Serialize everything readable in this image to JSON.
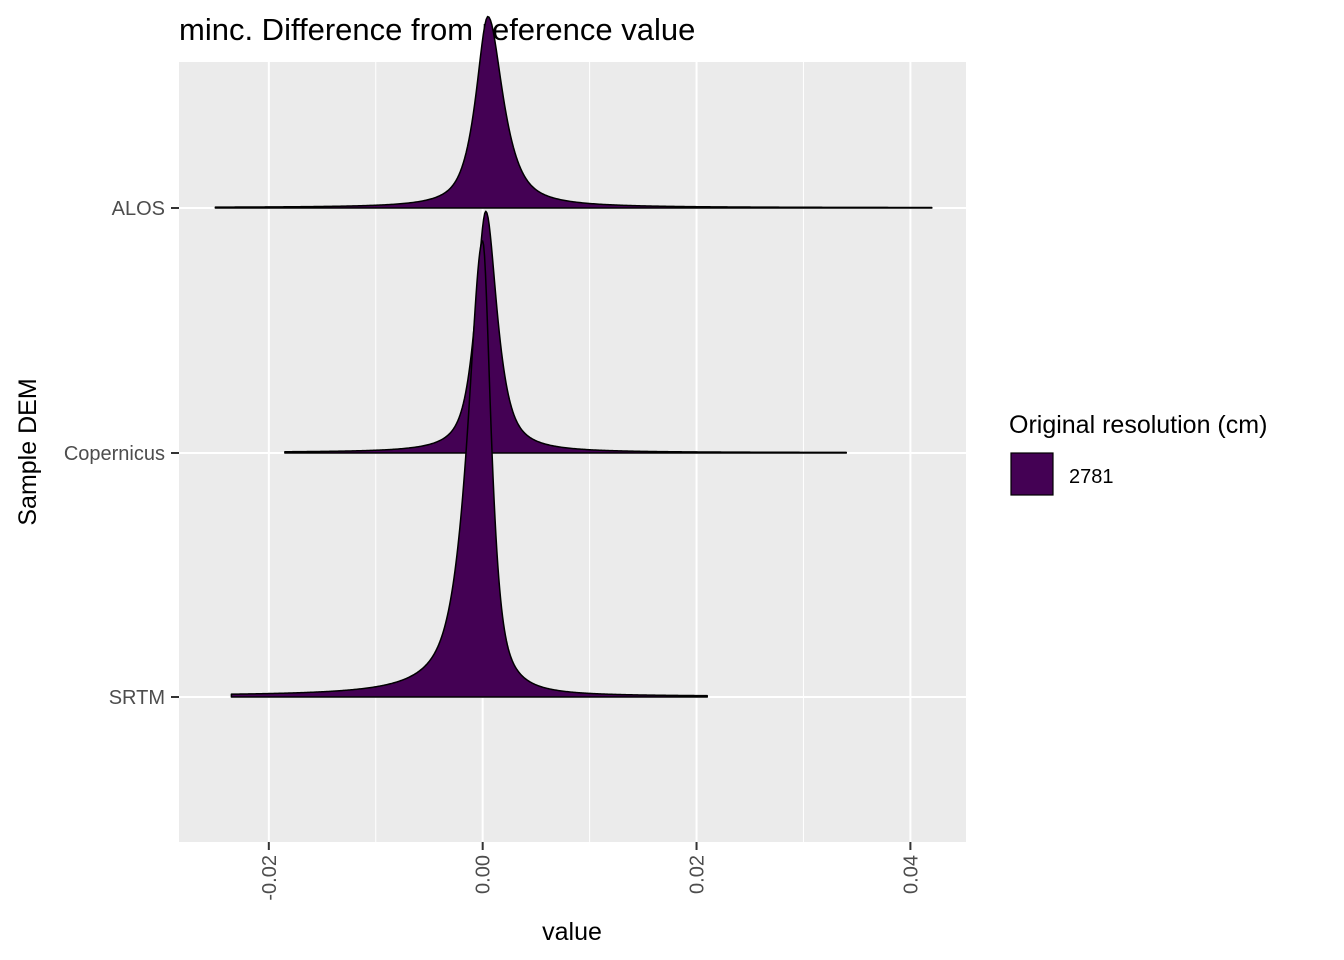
{
  "chart_data": {
    "type": "ridgeline",
    "title": "minc. Difference from reference value",
    "xlabel": "value",
    "ylabel": "Sample DEM",
    "xlim": [
      -0.0284,
      0.0452
    ],
    "x_ticks": [
      -0.02,
      0.0,
      0.02,
      0.04
    ],
    "x_tick_labels": [
      "-0.02",
      "0.00",
      "0.02",
      "0.04"
    ],
    "grid": true,
    "categories": [
      "ALOS",
      "Copernicus",
      "SRTM"
    ],
    "series": [
      {
        "category": "ALOS",
        "min": -0.025,
        "max": 0.042,
        "peak": 0.0005,
        "peak_height": 0.42,
        "sd_left": 0.0013,
        "sd_right": 0.0016
      },
      {
        "category": "Copernicus",
        "min": -0.0185,
        "max": 0.034,
        "peak": 0.0003,
        "peak_height": 0.53,
        "sd_left": 0.0011,
        "sd_right": 0.0012
      },
      {
        "category": "SRTM",
        "min": -0.0235,
        "max": 0.021,
        "peak": 0.0,
        "peak_height": 1.0,
        "sd_left": 0.0016,
        "sd_right": 0.0009
      }
    ],
    "fill_color": "#440154",
    "outline_color": "#000000",
    "legend": {
      "title": "Original resolution (cm)",
      "items": [
        {
          "label": "2781",
          "color": "#440154"
        }
      ],
      "position": "right"
    }
  }
}
